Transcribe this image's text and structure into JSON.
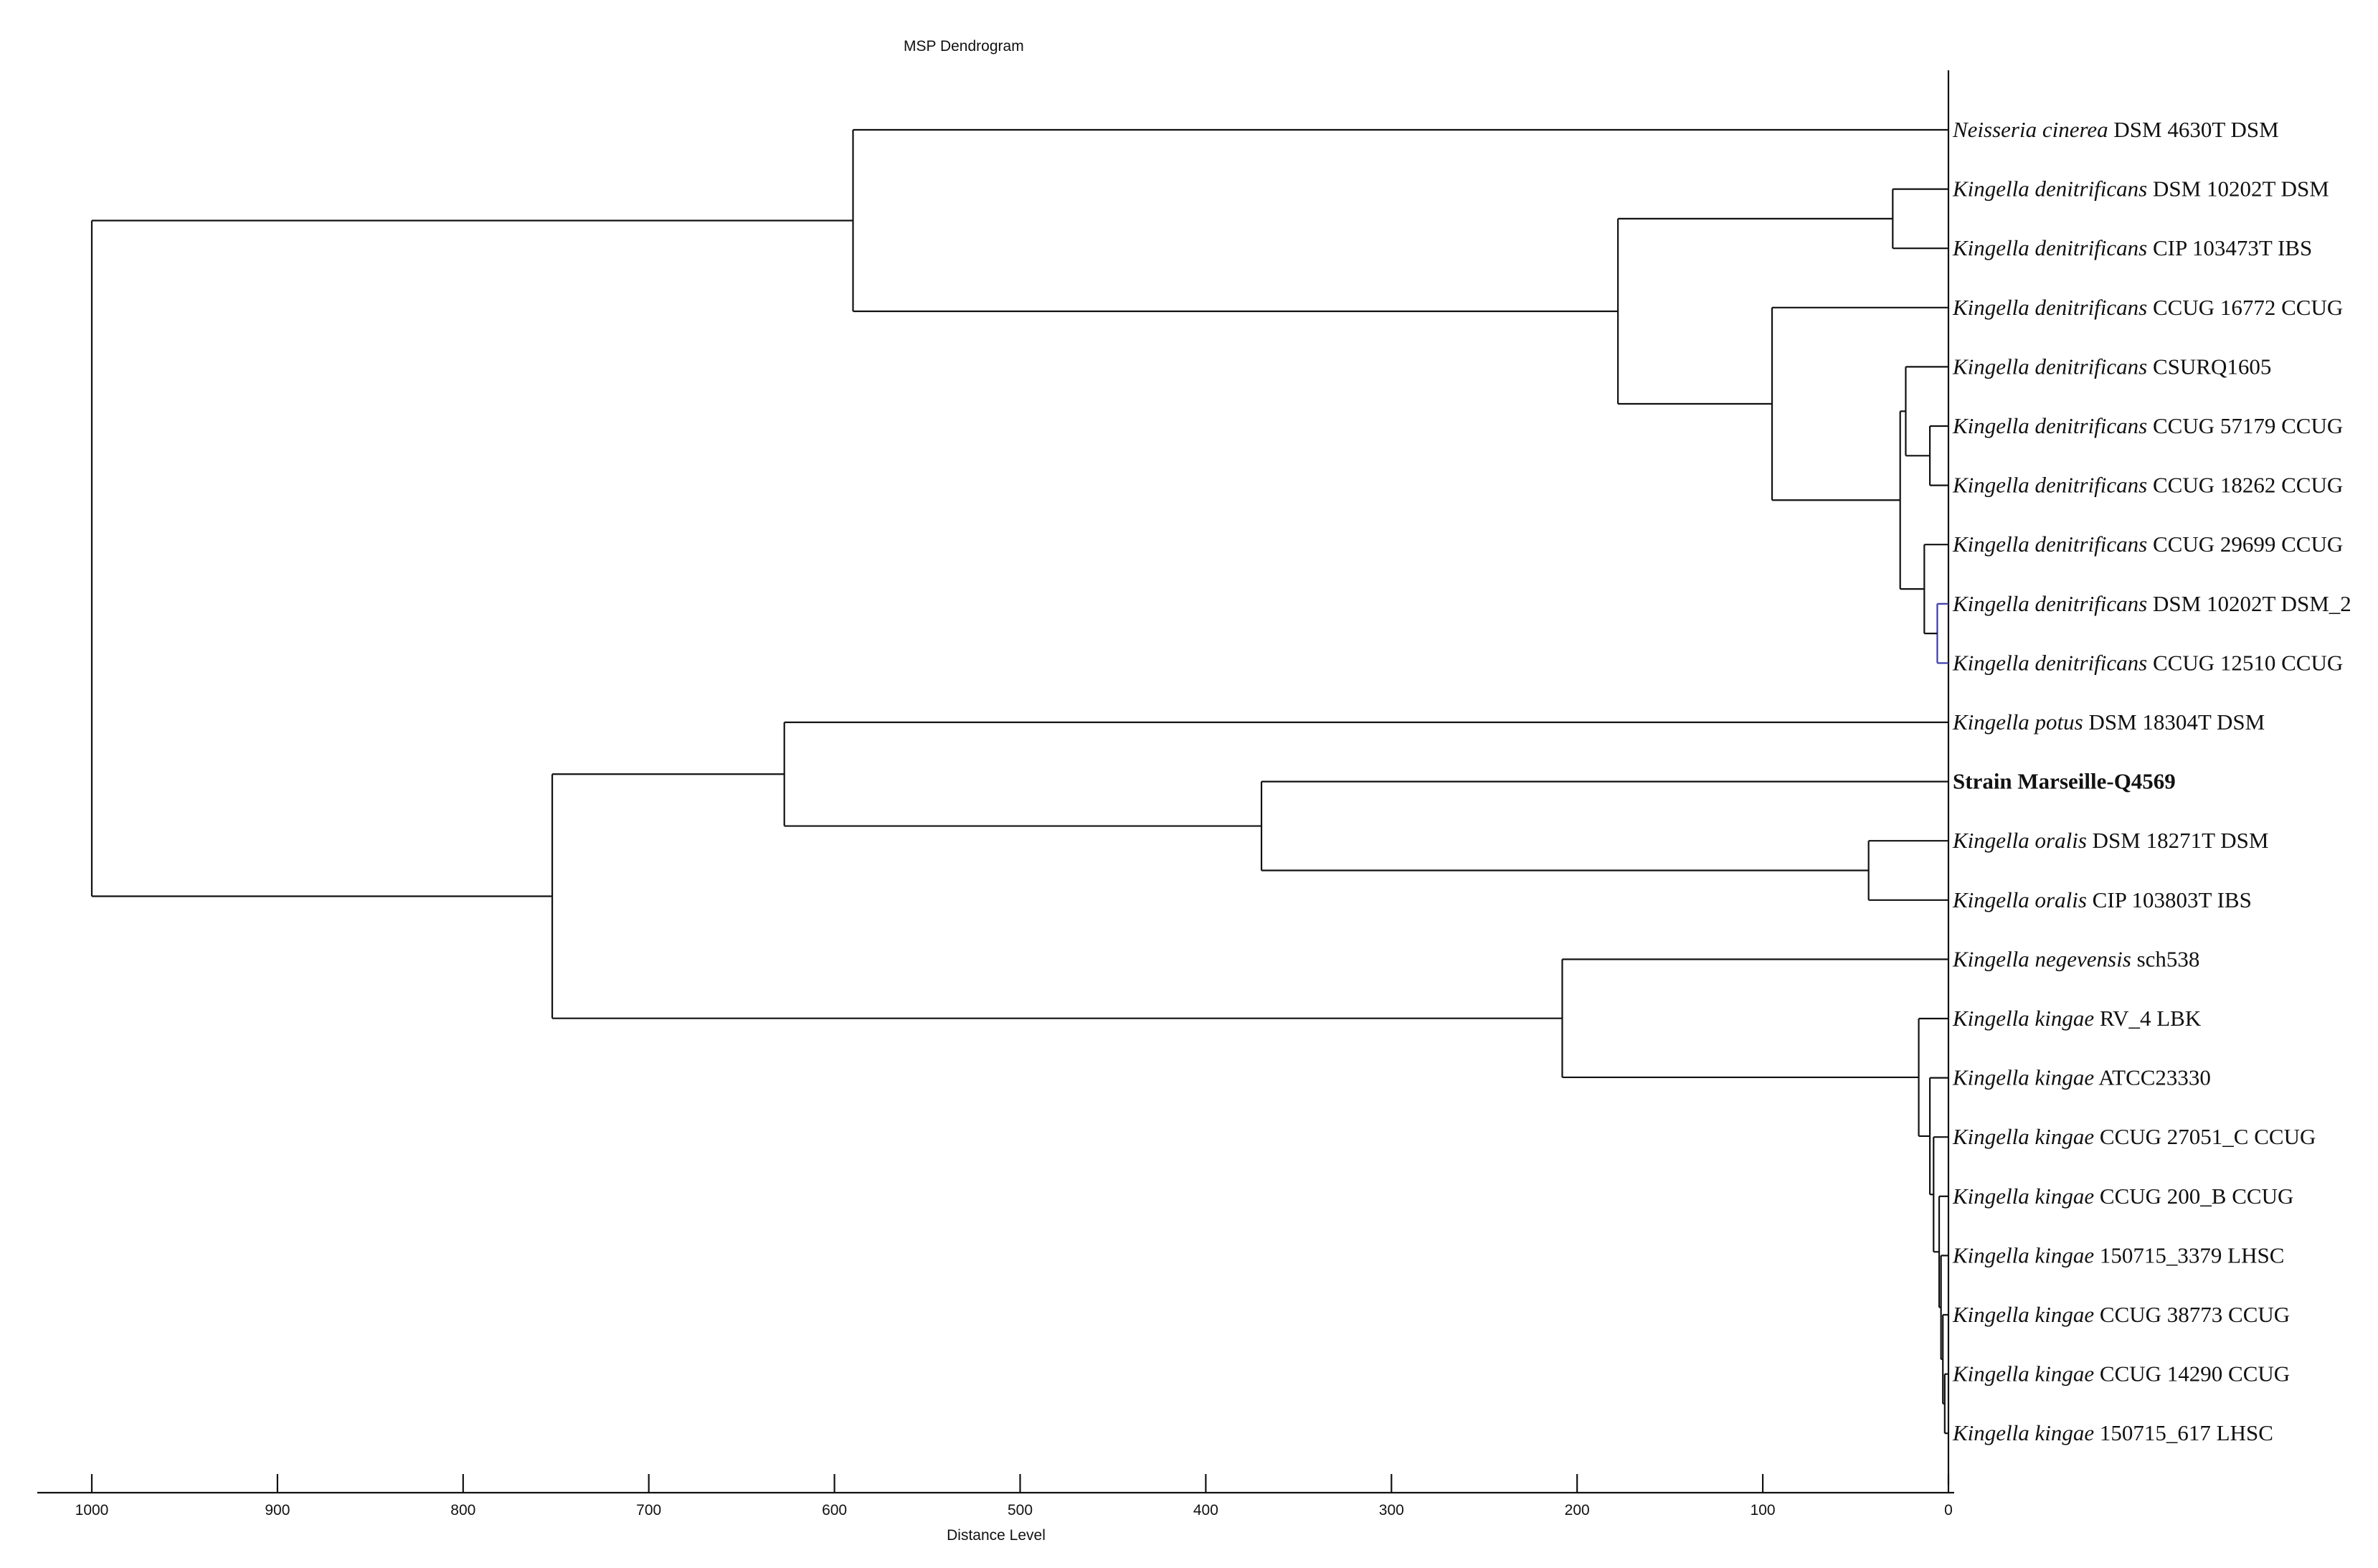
{
  "chart_data": {
    "type": "dendrogram",
    "title": "MSP Dendrogram",
    "xlabel": "Distance Level",
    "xlim": [
      1000,
      0
    ],
    "ticks": [
      1000,
      900,
      800,
      700,
      600,
      500,
      400,
      300,
      200,
      100,
      0
    ],
    "leaves": [
      {
        "species": "Neisseria cinerea",
        "strain": "DSM 4630T DSM",
        "bold": false
      },
      {
        "species": "Kingella denitrificans",
        "strain": "DSM 10202T DSM",
        "bold": false
      },
      {
        "species": "Kingella denitrificans",
        "strain": "CIP 103473T IBS",
        "bold": false
      },
      {
        "species": "Kingella denitrificans",
        "strain": "CCUG 16772 CCUG",
        "bold": false
      },
      {
        "species": "Kingella denitrificans",
        "strain": "CSURQ1605",
        "bold": false
      },
      {
        "species": "Kingella denitrificans",
        "strain": "CCUG 57179 CCUG",
        "bold": false
      },
      {
        "species": "Kingella denitrificans",
        "strain": "CCUG 18262 CCUG",
        "bold": false
      },
      {
        "species": "Kingella denitrificans",
        "strain": "CCUG 29699 CCUG",
        "bold": false
      },
      {
        "species": "Kingella denitrificans",
        "strain": "DSM 10202T DSM_2",
        "bold": false
      },
      {
        "species": "Kingella denitrificans",
        "strain": "CCUG 12510 CCUG",
        "bold": false
      },
      {
        "species": "Kingella potus",
        "strain": "DSM 18304T DSM",
        "bold": false
      },
      {
        "species": "",
        "strain": "Strain Marseille-Q4569",
        "bold": true
      },
      {
        "species": "Kingella oralis",
        "strain": "DSM 18271T DSM",
        "bold": false
      },
      {
        "species": "Kingella oralis",
        "strain": "CIP 103803T IBS",
        "bold": false
      },
      {
        "species": "Kingella negevensis",
        "strain": "sch538",
        "bold": false
      },
      {
        "species": "Kingella kingae",
        "strain": "RV_4 LBK",
        "bold": false
      },
      {
        "species": "Kingella kingae",
        "strain": "ATCC23330",
        "bold": false
      },
      {
        "species": "Kingella kingae",
        "strain": "CCUG 27051_C CCUG",
        "bold": false
      },
      {
        "species": "Kingella kingae",
        "strain": "CCUG 200_B CCUG",
        "bold": false
      },
      {
        "species": "Kingella kingae",
        "strain": "150715_3379 LHSC",
        "bold": false
      },
      {
        "species": "Kingella kingae",
        "strain": "CCUG 38773 CCUG",
        "bold": false
      },
      {
        "species": "Kingella kingae",
        "strain": "CCUG 14290 CCUG",
        "bold": false
      },
      {
        "species": "Kingella kingae",
        "strain": "150715_617 LHSC",
        "bold": false
      }
    ],
    "merges": [
      {
        "id": "m1",
        "children": [
          "L1",
          "L2"
        ],
        "distance": 30
      },
      {
        "id": "m2",
        "children": [
          "L5",
          "L6"
        ],
        "distance": 10
      },
      {
        "id": "m3",
        "children": [
          "L4",
          "m2"
        ],
        "distance": 23
      },
      {
        "id": "m4",
        "children": [
          "L8",
          "L9"
        ],
        "distance": 6,
        "color": "blue"
      },
      {
        "id": "m5",
        "children": [
          "L7",
          "m4"
        ],
        "distance": 13
      },
      {
        "id": "m6",
        "children": [
          "m3",
          "m5"
        ],
        "distance": 26
      },
      {
        "id": "m7",
        "children": [
          "L3",
          "m6"
        ],
        "distance": 95
      },
      {
        "id": "m8",
        "children": [
          "m1",
          "m7"
        ],
        "distance": 178
      },
      {
        "id": "m9",
        "children": [
          "L0",
          "m8"
        ],
        "distance": 590
      },
      {
        "id": "m10",
        "children": [
          "L12",
          "L13"
        ],
        "distance": 43
      },
      {
        "id": "m11",
        "children": [
          "L11",
          "m10"
        ],
        "distance": 370
      },
      {
        "id": "m12",
        "children": [
          "L10",
          "m11"
        ],
        "distance": 627
      },
      {
        "id": "m13",
        "children": [
          "L21",
          "L22"
        ],
        "distance": 2
      },
      {
        "id": "m14",
        "children": [
          "L20",
          "m13"
        ],
        "distance": 3
      },
      {
        "id": "m15",
        "children": [
          "L19",
          "m14"
        ],
        "distance": 4
      },
      {
        "id": "m16",
        "children": [
          "L18",
          "m15"
        ],
        "distance": 5
      },
      {
        "id": "m17",
        "children": [
          "L17",
          "m16"
        ],
        "distance": 8
      },
      {
        "id": "m18",
        "children": [
          "L16",
          "m17"
        ],
        "distance": 10
      },
      {
        "id": "m19",
        "children": [
          "L15",
          "m18"
        ],
        "distance": 16
      },
      {
        "id": "m20",
        "children": [
          "L14",
          "m19"
        ],
        "distance": 208
      },
      {
        "id": "m21",
        "children": [
          "m12",
          "m20"
        ],
        "distance": 752
      },
      {
        "id": "m22",
        "children": [
          "m9",
          "m21"
        ],
        "distance": 1000
      }
    ]
  }
}
